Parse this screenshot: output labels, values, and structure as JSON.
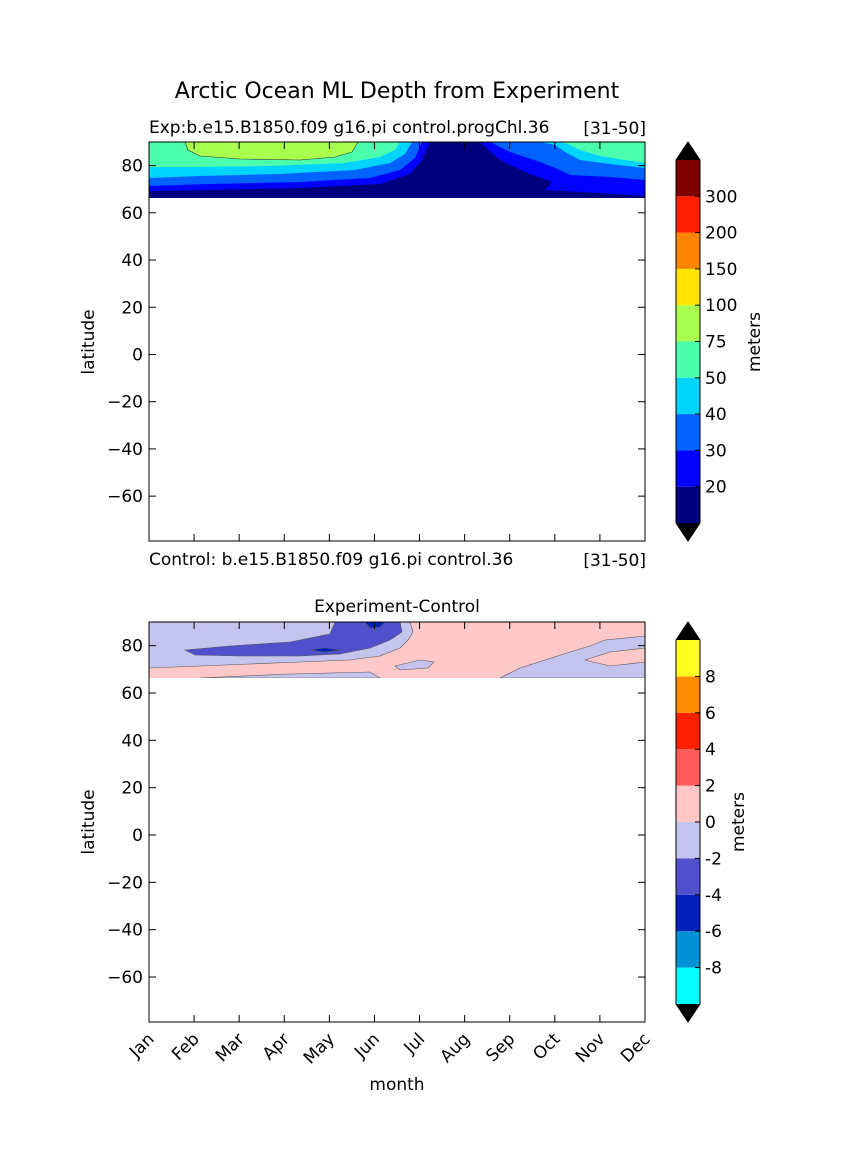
{
  "figure": {
    "suptitle": "Arctic Ocean ML Depth from Experiment"
  },
  "chart_data": [
    {
      "type": "heatmap",
      "title_left": "Exp:b.e15.B1850.f09 g16.pi control.progChl.36",
      "title_right": "[31-50]",
      "xlabel": "",
      "ylabel": "latitude",
      "xlim": [
        0,
        11
      ],
      "ylim": [
        -79,
        90
      ],
      "yticks": [
        80,
        60,
        40,
        20,
        0,
        -20,
        -40,
        -60
      ],
      "colorbar": {
        "label": "meters",
        "extend": "both",
        "levels": [
          "20",
          "30",
          "40",
          "50",
          "75",
          "100",
          "150",
          "200",
          "300"
        ],
        "colors": [
          "#00007f",
          "#0000ff",
          "#0062ff",
          "#00d4ff",
          "#4bffac",
          "#a9ff4d",
          "#ffe500",
          "#ff8700",
          "#ff1e00",
          "#7f0000"
        ],
        "under_color": "#000000",
        "over_color": "#000000"
      },
      "data_extent_lat": [
        66,
        90
      ]
    },
    {
      "type": "heatmap",
      "subtitle_left": "Control: b.e15.B1850.f09 g16.pi control.36",
      "subtitle_right": "[31-50]",
      "title": "Experiment-Control",
      "xlabel": "month",
      "ylabel": "latitude",
      "xlim": [
        0,
        11
      ],
      "ylim": [
        -79,
        90
      ],
      "yticks": [
        80,
        60,
        40,
        20,
        0,
        -20,
        -40,
        -60
      ],
      "xticks": [
        "Jan",
        "Feb",
        "Mar",
        "Apr",
        "May",
        "Jun",
        "Jul",
        "Aug",
        "Sep",
        "Oct",
        "Nov",
        "Dec"
      ],
      "colorbar": {
        "label": "meters",
        "extend": "both",
        "levels": [
          "-8",
          "-6",
          "-4",
          "-2",
          "0",
          "2",
          "4",
          "6",
          "8"
        ],
        "colors": [
          "#00ffff",
          "#0092d4",
          "#0020b8",
          "#5050cc",
          "#c4c4ee",
          "#ffc8c8",
          "#ff5a5a",
          "#ff2000",
          "#ff8c00",
          "#ffff22"
        ],
        "under_color": "#000000",
        "over_color": "#000000"
      },
      "data_extent_lat": [
        66,
        90
      ]
    }
  ]
}
